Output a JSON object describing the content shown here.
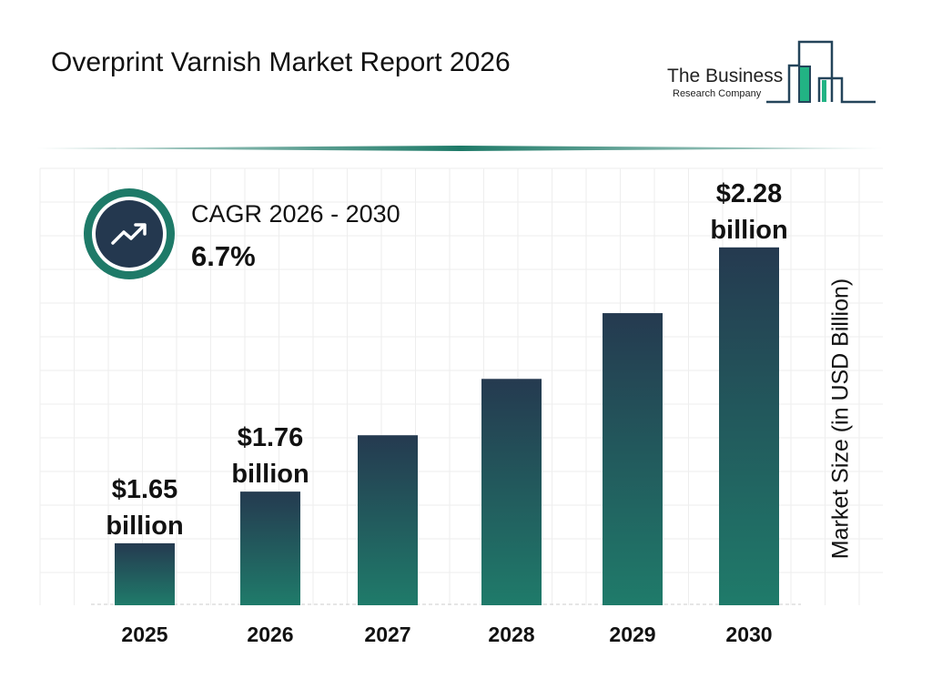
{
  "header": {
    "title": "Overprint Varnish Market Report 2026",
    "logo_line1": "The Business",
    "logo_line2": "Research Company"
  },
  "cagr": {
    "label": "CAGR 2026 - 2030",
    "value": "6.7%",
    "icon": "trending-up-icon"
  },
  "colors": {
    "bar_top": "#253a50",
    "bar_bottom": "#1f7b6a",
    "accent": "#1e7a68"
  },
  "chart_data": {
    "type": "bar",
    "categories": [
      "2025",
      "2026",
      "2027",
      "2028",
      "2029",
      "2030"
    ],
    "values": [
      1.65,
      1.76,
      1.88,
      2.0,
      2.14,
      2.28
    ],
    "data_labels": [
      {
        "index": 0,
        "line1": "$1.65",
        "line2": "billion"
      },
      {
        "index": 1,
        "line1": "$1.76",
        "line2": "billion"
      },
      {
        "index": 5,
        "line1": "$2.28",
        "line2": "billion"
      }
    ],
    "xlabel": "",
    "ylabel": "Market Size (in USD Billion)",
    "grid": true
  }
}
